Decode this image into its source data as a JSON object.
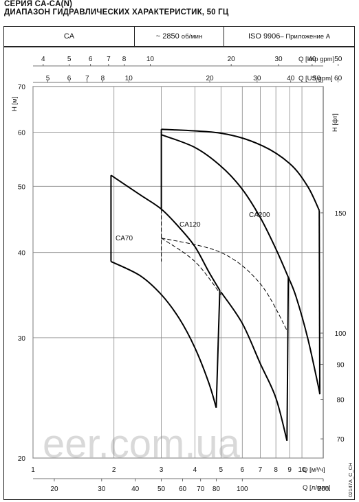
{
  "header": {
    "title_line1": "СЕРИЯ CA-CA(N)",
    "title_line2": "ДИАПАЗОН ГИДРАВЛИЧЕСКИХ ХАРАКТЕРИСТИК, 50 ГЦ",
    "series_cell": "CA",
    "speed_value": "~ 2850",
    "speed_unit": "об/мин",
    "standard": "ISO 9906",
    "standard_note": " – Приложение A"
  },
  "watermark": "eer.com.ua",
  "code": "02147A_C_CH",
  "chart_data": {
    "type": "line",
    "x_scale": "log",
    "y_scale": "log",
    "xlim": [
      1,
      12
    ],
    "ylim": [
      20,
      70
    ],
    "xlabel": "Q [м³/ч]",
    "ylabel": "H [м]",
    "y2label": "H [фт]",
    "x_ticks": [
      1,
      2,
      3,
      4,
      5,
      6,
      7,
      8,
      9,
      10
    ],
    "x_tick_labels": [
      "1",
      "2",
      "3",
      "4",
      "5",
      "6",
      "7",
      "8",
      "9",
      "10"
    ],
    "y_ticks": [
      20,
      30,
      40,
      50,
      60,
      70
    ],
    "y_tick_labels": [
      "20",
      "30",
      "40",
      "50",
      "60",
      "70"
    ],
    "lpm_axis": {
      "label": "Q [л/мин]",
      "ticks": [
        20,
        30,
        40,
        50,
        60,
        70,
        80,
        100,
        200
      ],
      "tick_labels": [
        "20",
        "30",
        "40",
        "50",
        "60",
        "70",
        "80",
        "100",
        "200"
      ]
    },
    "imp_gpm_axis": {
      "label": "Q [Imp gpm]",
      "ticks": [
        4,
        5,
        6,
        7,
        8,
        10,
        20,
        30,
        40,
        50
      ],
      "tick_labels": [
        "4",
        "5",
        "6",
        "7",
        "8",
        "10",
        "20",
        "30",
        "40",
        "50"
      ]
    },
    "us_gpm_axis": {
      "label": "Q [US gpm]",
      "ticks": [
        5,
        6,
        7,
        8,
        10,
        20,
        30,
        40,
        50,
        60
      ],
      "tick_labels": [
        "5",
        "6",
        "7",
        "8",
        "10",
        "20",
        "30",
        "40",
        "50",
        "60"
      ]
    },
    "ft_axis": {
      "ticks": [
        70,
        80,
        90,
        100,
        150
      ],
      "tick_labels": [
        "70",
        "80",
        "90",
        "100",
        "150"
      ]
    },
    "series": [
      {
        "name": "CA70",
        "max": [
          [
            1.95,
            51.9
          ],
          [
            2.5,
            48.6
          ],
          [
            3.0,
            46.3
          ],
          [
            3.5,
            43.5
          ],
          [
            4.0,
            40.8
          ],
          [
            4.5,
            37.5
          ],
          [
            4.95,
            35.2
          ]
        ],
        "min": [
          [
            1.95,
            38.8
          ],
          [
            2.5,
            37.0
          ],
          [
            3.0,
            34.7
          ],
          [
            3.5,
            32.0
          ],
          [
            4.0,
            29.0
          ],
          [
            4.5,
            25.8
          ],
          [
            4.8,
            23.7
          ]
        ],
        "dashed": [
          [
            3.0,
            42.0
          ],
          [
            4.0,
            38.8
          ],
          [
            5.0,
            34.7
          ]
        ]
      },
      {
        "name": "CA120",
        "max": [
          [
            3.0,
            59.5
          ],
          [
            4.0,
            57.0
          ],
          [
            5.0,
            53.5
          ],
          [
            6.0,
            49.5
          ],
          [
            7.0,
            45.0
          ],
          [
            8.0,
            40.5
          ],
          [
            8.9,
            36.8
          ]
        ],
        "min": [
          [
            5.0,
            35.0
          ],
          [
            6.0,
            31.5
          ],
          [
            7.0,
            27.5
          ],
          [
            8.0,
            24.5
          ],
          [
            8.8,
            21.2
          ]
        ],
        "dashed": [
          [
            3.0,
            42.0
          ],
          [
            5.0,
            40.0
          ],
          [
            7.0,
            36.0
          ],
          [
            8.9,
            30.5
          ]
        ]
      },
      {
        "name": "CA200",
        "max": [
          [
            3.0,
            60.6
          ],
          [
            5.0,
            59.8
          ],
          [
            7.0,
            57.5
          ],
          [
            9.0,
            54.0
          ],
          [
            10.5,
            50.0
          ],
          [
            11.6,
            46.1
          ]
        ],
        "min": [
          [
            8.9,
            36.8
          ],
          [
            9.5,
            34.5
          ],
          [
            10.5,
            30.0
          ],
          [
            11.5,
            25.5
          ],
          [
            11.65,
            24.8
          ]
        ],
        "dashed": []
      }
    ]
  }
}
